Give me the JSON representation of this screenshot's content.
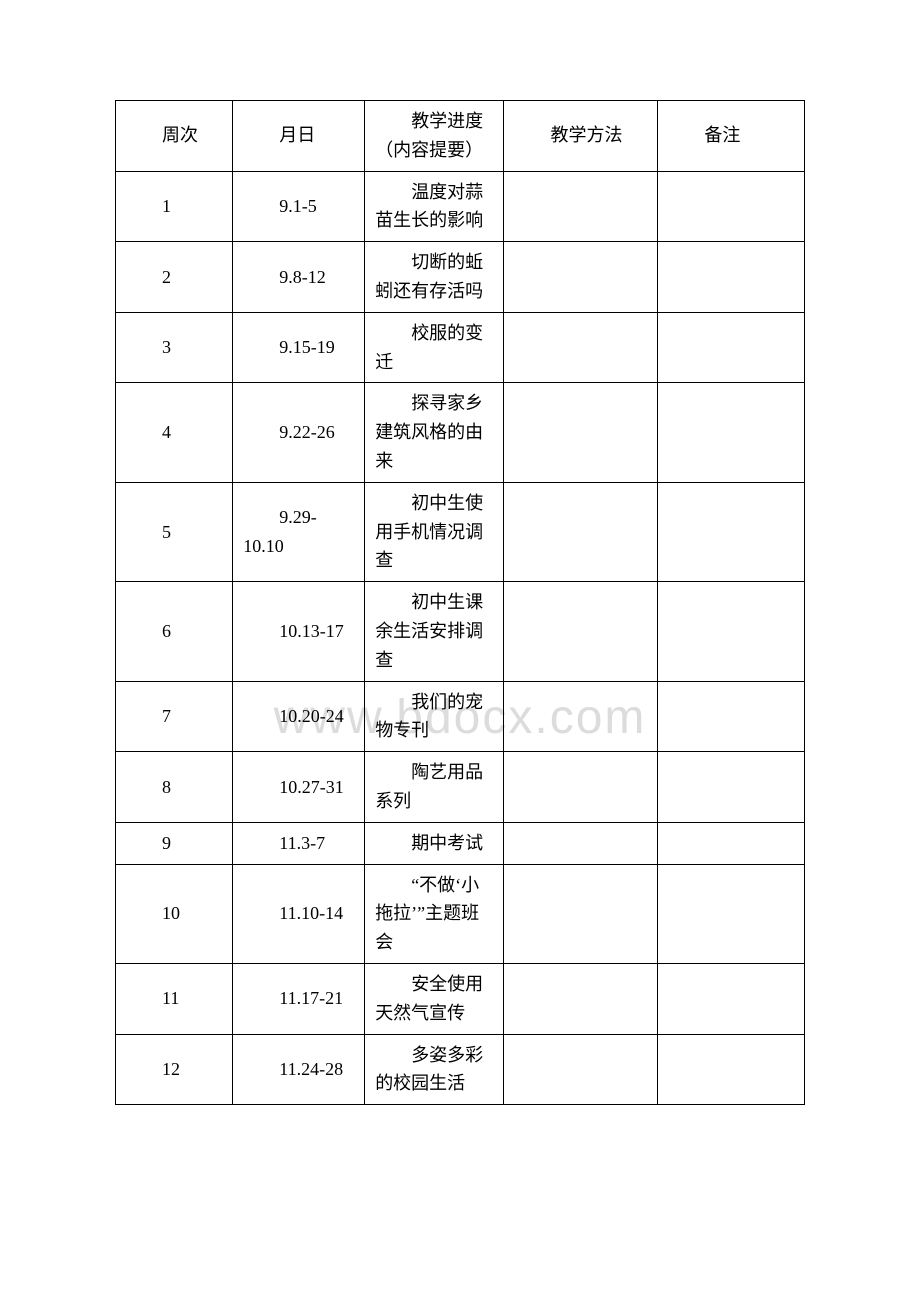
{
  "watermark_text": "www.bdocx.com",
  "table": {
    "columns": [
      {
        "label": "周次",
        "width": "16%"
      },
      {
        "label": "月日",
        "width": "18%"
      },
      {
        "label": "教学进度（内容提要）",
        "width": "19%",
        "indented": true
      },
      {
        "label": "教学方法",
        "width": "21%",
        "indented": true
      },
      {
        "label": "备注",
        "width": "20%",
        "indented": true
      }
    ],
    "rows": [
      {
        "week": "1",
        "date": "9.1-5",
        "content": "温度对蒜苗生长的影响",
        "method": "",
        "note": ""
      },
      {
        "week": "2",
        "date": "9.8-12",
        "content": "切断的蚯蚓还有存活吗",
        "method": "",
        "note": ""
      },
      {
        "week": "3",
        "date": "9.15-19",
        "content": "校服的变迁",
        "method": "",
        "note": ""
      },
      {
        "week": "4",
        "date": "9.22-26",
        "content": "探寻家乡建筑风格的由来",
        "method": "",
        "note": ""
      },
      {
        "week": "5",
        "date": "9.29-10.10",
        "content": "初中生使用手机情况调查",
        "method": "",
        "note": ""
      },
      {
        "week": "6",
        "date": "10.13-17",
        "content": "初中生课余生活安排调查",
        "method": "",
        "note": ""
      },
      {
        "week": "7",
        "date": "10.20-24",
        "content": "我们的宠物专刊",
        "method": "",
        "note": ""
      },
      {
        "week": "8",
        "date": "10.27-31",
        "content": "陶艺用品系列",
        "method": "",
        "note": ""
      },
      {
        "week": "9",
        "date": "11.3-7",
        "content": "期中考试",
        "method": "",
        "note": ""
      },
      {
        "week": "10",
        "date": "11.10-14",
        "content": "“不做‘小拖拉’”主题班会",
        "method": "",
        "note": ""
      },
      {
        "week": "11",
        "date": "11.17-21",
        "content": "安全使用天然气宣传",
        "method": "",
        "note": ""
      },
      {
        "week": "12",
        "date": "11.24-28",
        "content": "多姿多彩的校园生活",
        "method": "",
        "note": ""
      }
    ],
    "styling": {
      "border_color": "#000000",
      "border_width": 1,
      "background_color": "#ffffff",
      "text_color": "#000000",
      "font_size": 18,
      "font_family": "SimSun",
      "cell_padding": "6px 10px",
      "line_height": 1.6,
      "content_text_indent": "2em",
      "watermark_color": "#dcdcdc",
      "watermark_font_size": 48
    }
  }
}
